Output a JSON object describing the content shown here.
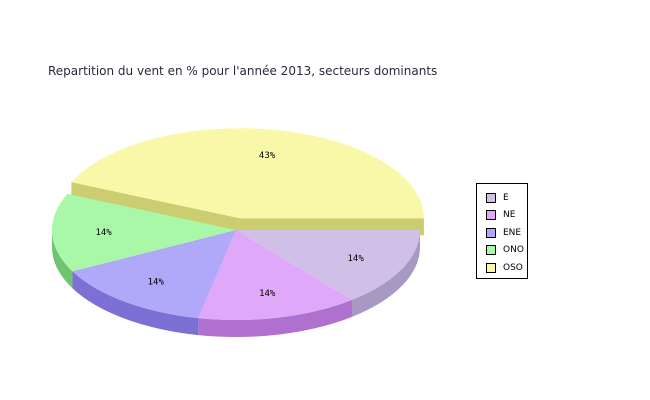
{
  "chart_data": {
    "type": "pie",
    "title": "Repartition du vent en % pour l'année 2013, secteurs dominants",
    "slices": [
      {
        "name": "E",
        "value": 14,
        "label": "14%",
        "color": "#d0c0e8",
        "side_color": "#a898c4"
      },
      {
        "name": "NE",
        "value": 14,
        "label": "14%",
        "color": "#e0a8f8",
        "side_color": "#b070d0"
      },
      {
        "name": "ENE",
        "value": 14,
        "label": "14%",
        "color": "#b0a8f8",
        "side_color": "#7c70d4"
      },
      {
        "name": "ONO",
        "value": 14,
        "label": "14%",
        "color": "#a8f8a8",
        "side_color": "#70c470"
      },
      {
        "name": "OSO",
        "value": 43,
        "label": "43%",
        "color": "#f8f8a8",
        "side_color": "#cccc70",
        "exploded": true
      }
    ],
    "legend_position": "right"
  }
}
